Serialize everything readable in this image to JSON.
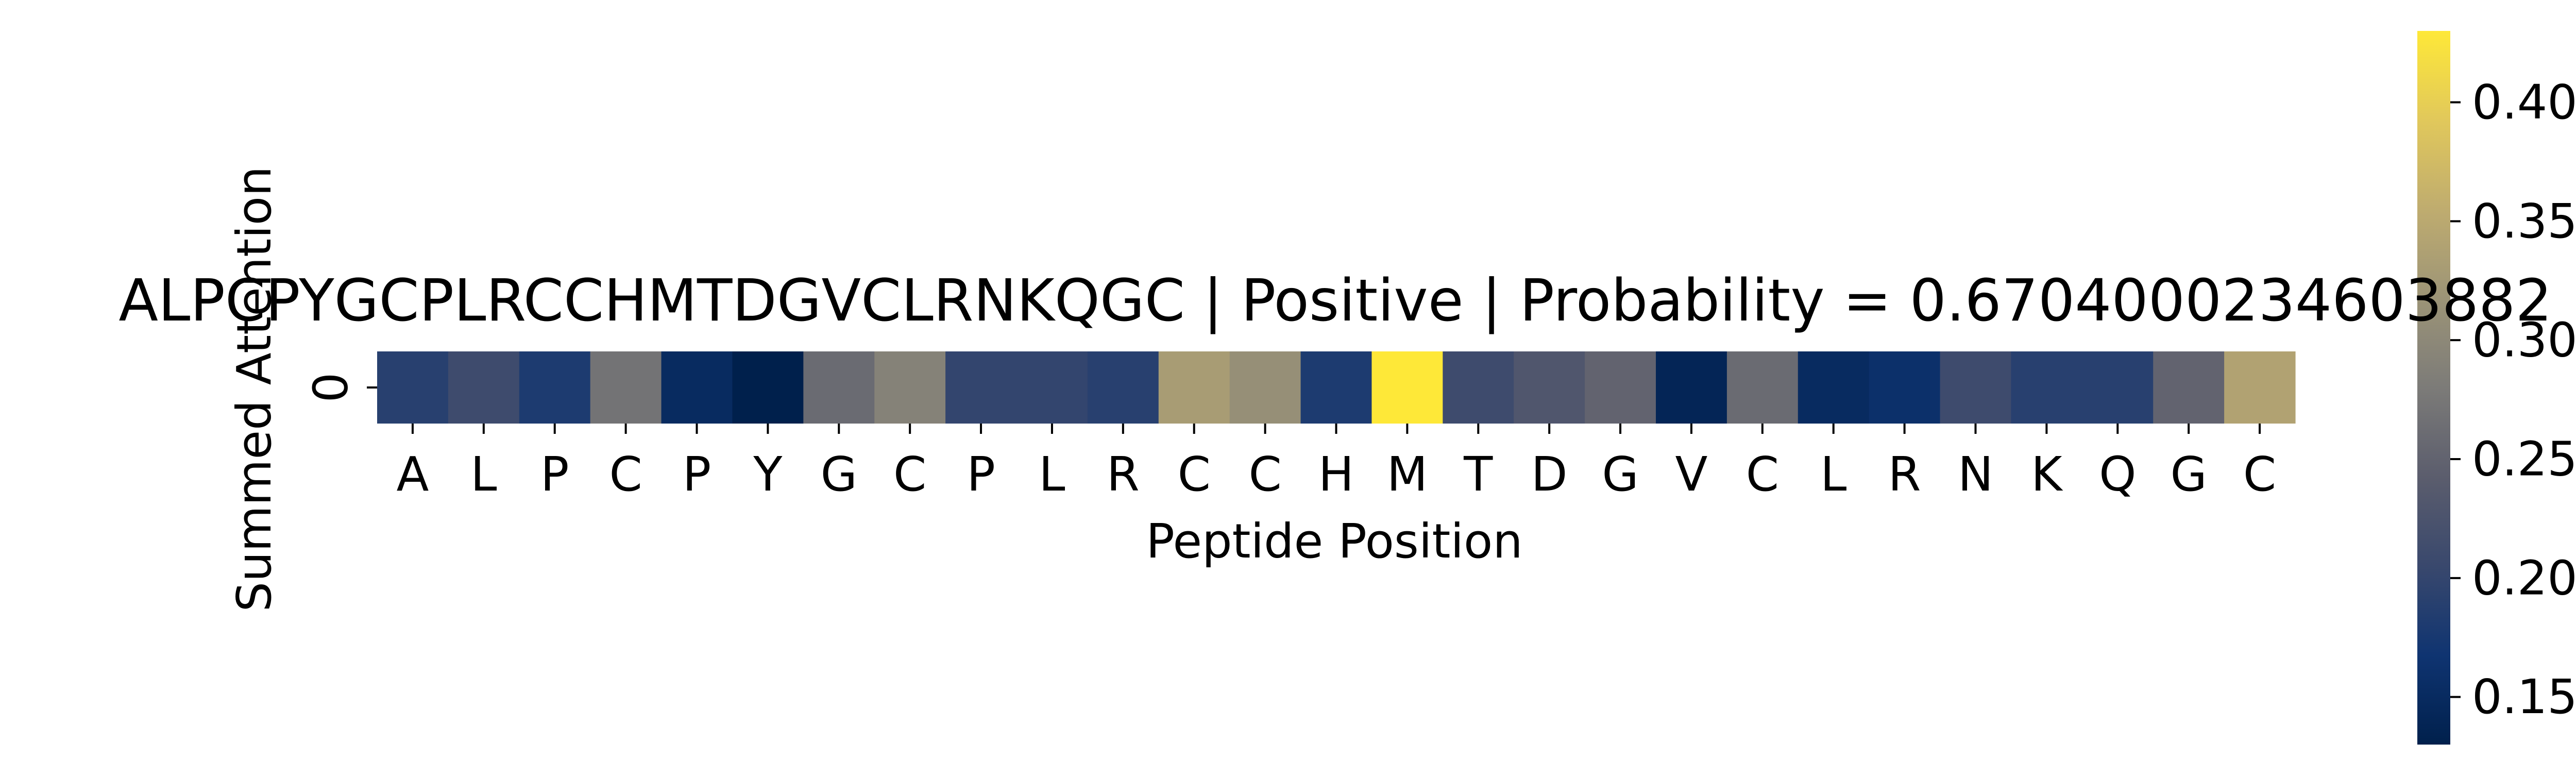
{
  "chart_data": {
    "type": "heatmap",
    "title": "ALPCPYGCPLRCCHMTDGVCLRNKQGC | Positive | Probability = 0.6704000234603882",
    "xlabel": "Peptide Position",
    "ylabel": "Summed Attention",
    "rows": [
      "0"
    ],
    "categories": [
      "A",
      "L",
      "P",
      "C",
      "P",
      "Y",
      "G",
      "C",
      "P",
      "L",
      "R",
      "C",
      "C",
      "H",
      "M",
      "T",
      "D",
      "G",
      "V",
      "C",
      "L",
      "R",
      "N",
      "K",
      "Q",
      "G",
      "C"
    ],
    "values": [
      0.19,
      0.21,
      0.18,
      0.27,
      0.15,
      0.13,
      0.26,
      0.29,
      0.2,
      0.2,
      0.19,
      0.33,
      0.31,
      0.18,
      0.43,
      0.21,
      0.23,
      0.25,
      0.14,
      0.26,
      0.15,
      0.16,
      0.21,
      0.19,
      0.19,
      0.25,
      0.34
    ],
    "colormap": "cividis",
    "colorbar": {
      "min": 0.13,
      "max": 0.43,
      "ticks": [
        0.15,
        0.2,
        0.25,
        0.3,
        0.35,
        0.4
      ],
      "tick_labels": [
        "0.15",
        "0.20",
        "0.25",
        "0.30",
        "0.35",
        "0.40"
      ],
      "placement": "right"
    },
    "grid": false
  }
}
